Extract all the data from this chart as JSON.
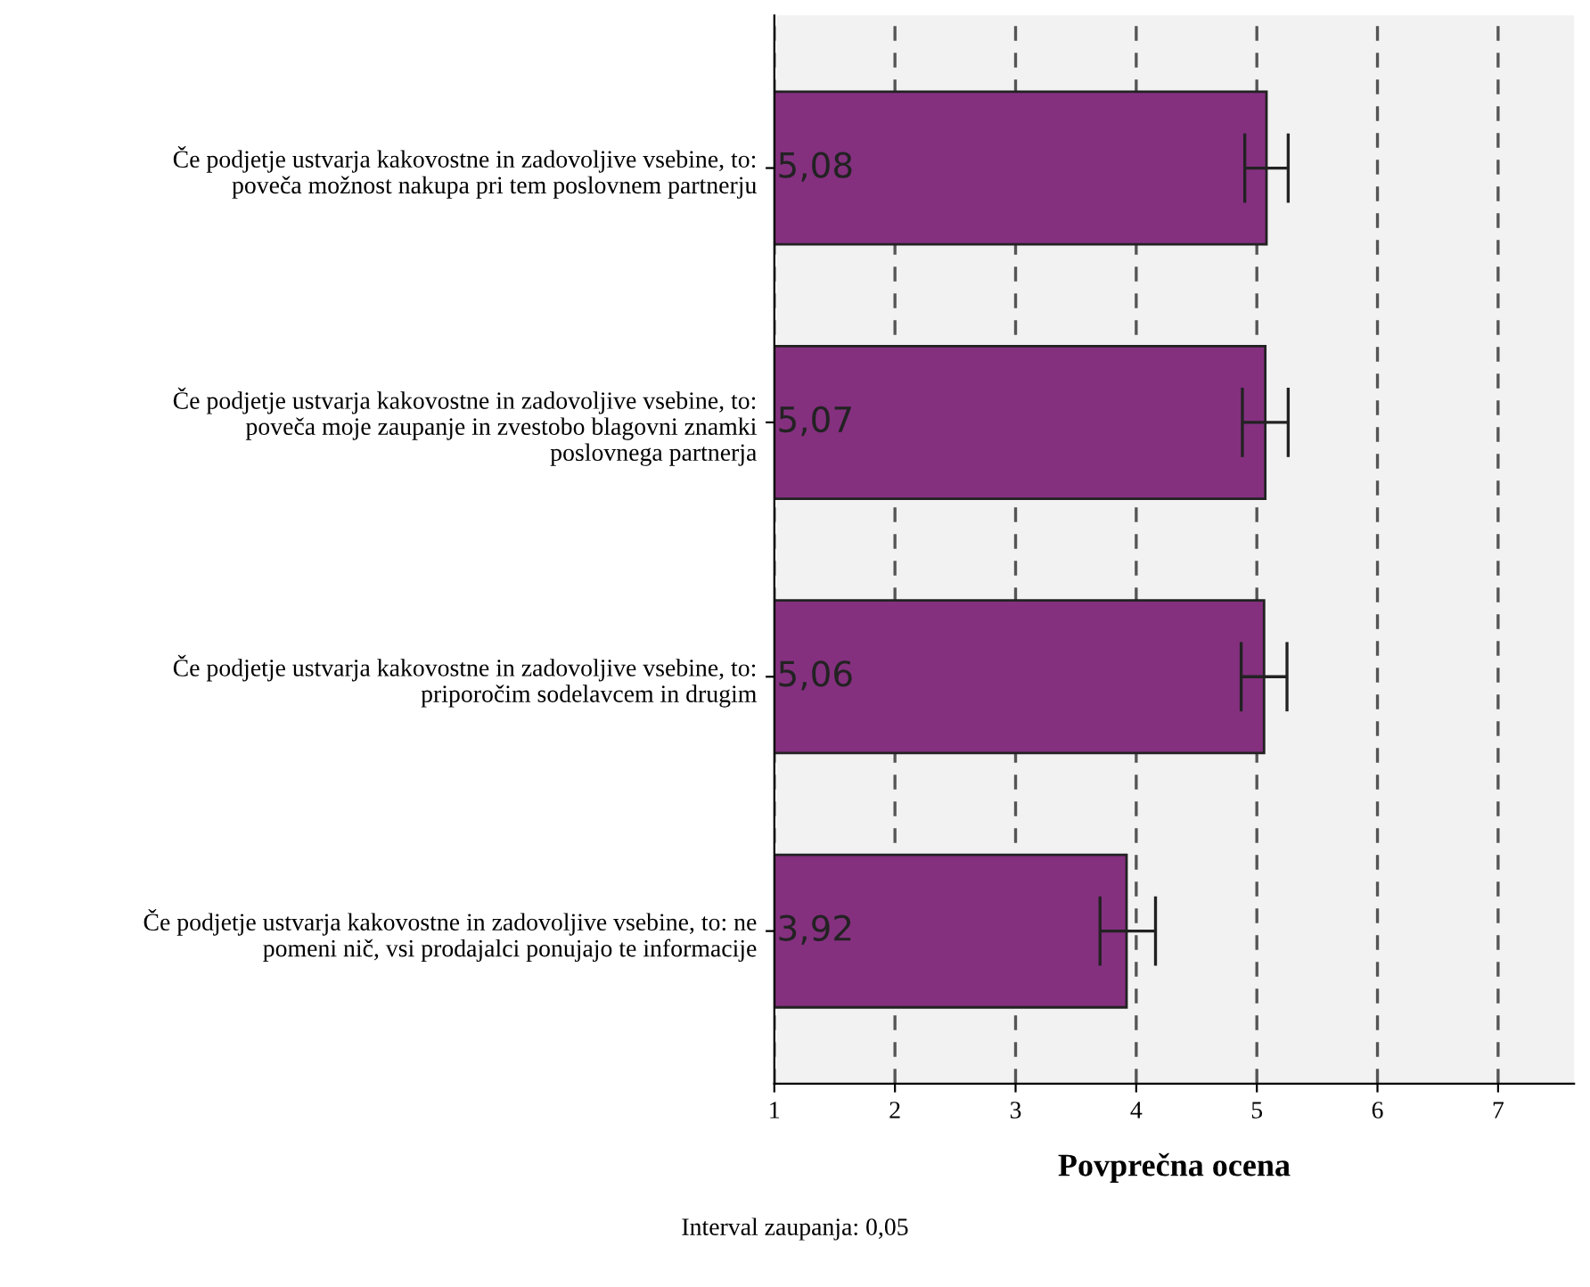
{
  "chart_data": {
    "type": "bar",
    "orientation": "horizontal",
    "categories": [
      "Če podjetje ustvarja kakovostne in zadovoljive vsebine, to:\npoveča možnost nakupa pri tem poslovnem partnerju",
      "Če podjetje ustvarja kakovostne in zadovoljive vsebine, to:\npoveča moje zaupanje in zvestobo blagovni znamki\nposlovnega partnerja",
      "Če podjetje ustvarja kakovostne in zadovoljive vsebine, to:\npriporočim sodelavcem in drugim",
      "Če podjetje ustvarja kakovostne in zadovoljive vsebine, to: ne\npomeni nič, vsi prodajalci ponujajo te informacije"
    ],
    "values": [
      5.08,
      5.07,
      5.06,
      3.92
    ],
    "value_labels": [
      "5,08",
      "5,07",
      "5,06",
      "3,92"
    ],
    "errors": [
      [
        4.9,
        5.26
      ],
      [
        4.88,
        5.26
      ],
      [
        4.87,
        5.25
      ],
      [
        3.7,
        4.16
      ]
    ],
    "color": "#84307f",
    "xlim": [
      1,
      7.63
    ],
    "xticks": [
      1,
      2,
      3,
      4,
      5,
      6,
      7
    ],
    "xlabel": "Povprečna ocena",
    "grid": "x",
    "annotations": [
      "Interval zaupanja: 0,05"
    ]
  }
}
